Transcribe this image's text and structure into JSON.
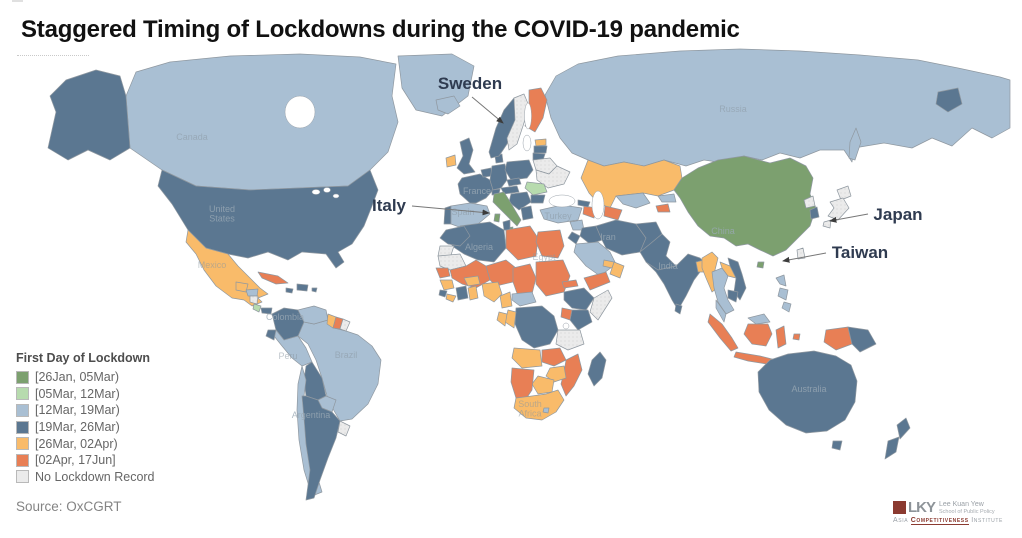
{
  "title": "Staggered Timing of Lockdowns during the COVID-19 pandemic",
  "source": "Source: OxCGRT",
  "legend": {
    "title": "First Day of Lockdown",
    "items": [
      {
        "key": "cat1",
        "label": "[26Jan, 05Mar)",
        "color": "#7ca06f"
      },
      {
        "key": "cat2",
        "label": "[05Mar, 12Mar)",
        "color": "#b7dbae"
      },
      {
        "key": "cat3",
        "label": "[12Mar, 19Mar)",
        "color": "#a9bfd3"
      },
      {
        "key": "cat4",
        "label": "[19Mar, 26Mar)",
        "color": "#5b7791"
      },
      {
        "key": "cat5",
        "label": "[26Mar, 02Apr)",
        "color": "#f9bb6a"
      },
      {
        "key": "cat6",
        "label": "[02Apr, 17Jun]",
        "color": "#e87f55"
      },
      {
        "key": "cat7",
        "label": "No Lockdown Record",
        "color": "#ebebeb"
      }
    ]
  },
  "annotations": [
    {
      "id": "sweden",
      "label": "Sweden"
    },
    {
      "id": "italy",
      "label": "Italy"
    },
    {
      "id": "japan",
      "label": "Japan"
    },
    {
      "id": "taiwan",
      "label": "Taiwan"
    }
  ],
  "map_labels": [
    {
      "id": "canada",
      "text": "Canada",
      "tone": "light"
    },
    {
      "id": "usa",
      "text": "United\nStates",
      "tone": "dark"
    },
    {
      "id": "mexico",
      "text": "Mexico",
      "tone": "light"
    },
    {
      "id": "colombia",
      "text": "Colombia",
      "tone": "dark"
    },
    {
      "id": "peru",
      "text": "Peru",
      "tone": "light"
    },
    {
      "id": "brazil",
      "text": "Brazil",
      "tone": "light"
    },
    {
      "id": "argentina",
      "text": "Argentina",
      "tone": "dark"
    },
    {
      "id": "russia",
      "text": "Russia",
      "tone": "light"
    },
    {
      "id": "china",
      "text": "China",
      "tone": "dark"
    },
    {
      "id": "india",
      "text": "India",
      "tone": "dark"
    },
    {
      "id": "iran",
      "text": "Iran",
      "tone": "dark"
    },
    {
      "id": "turkey",
      "text": "Turkey",
      "tone": "light"
    },
    {
      "id": "spain",
      "text": "Spain",
      "tone": "light"
    },
    {
      "id": "france",
      "text": "France",
      "tone": "dark"
    },
    {
      "id": "algeria",
      "text": "Algeria",
      "tone": "dark"
    },
    {
      "id": "egypt",
      "text": "Egypt",
      "tone": "light"
    },
    {
      "id": "southafrica",
      "text": "South\nAfrica",
      "tone": "light"
    },
    {
      "id": "australia",
      "text": "Australia",
      "tone": "dark"
    }
  ],
  "logo": {
    "letters": "LKY",
    "school_line1": "Lee Kuan Yew",
    "school_line2": "School of Public Policy",
    "institute_prefix": "Asia",
    "institute_highlight": "Competitiveness",
    "institute_suffix": "Institute",
    "maroon": "#8b3a30"
  },
  "chart_data": {
    "type": "choropleth",
    "title": "Staggered Timing of Lockdowns during the COVID-19 pandemic",
    "legend_title": "First Day of Lockdown",
    "source": "OxCGRT",
    "categories": [
      {
        "key": "cat1",
        "range": "[26Jan, 05Mar)",
        "color": "#7ca06f"
      },
      {
        "key": "cat2",
        "range": "[05Mar, 12Mar)",
        "color": "#b7dbae"
      },
      {
        "key": "cat3",
        "range": "[12Mar, 19Mar)",
        "color": "#a9bfd3"
      },
      {
        "key": "cat4",
        "range": "[19Mar, 26Mar)",
        "color": "#5b7791"
      },
      {
        "key": "cat5",
        "range": "[26Mar, 02Apr)",
        "color": "#f9bb6a"
      },
      {
        "key": "cat6",
        "range": "[02Apr, 17Jun]",
        "color": "#e87f55"
      },
      {
        "key": "cat7",
        "range": "No Lockdown Record",
        "color": "#ebebeb"
      }
    ],
    "regions": {
      "russia": "cat3",
      "chukotka": "cat4",
      "sakhalin": "cat3",
      "canada": "cat3",
      "alaska": "cat4",
      "greenland": "cat3",
      "usa": "cat4",
      "mexico": "cat5",
      "guatemala": "cat5",
      "honduras": "cat3",
      "nicaragua": "cat7",
      "costarica": "cat2",
      "panama": "cat4",
      "cuba": "cat6",
      "jamaica": "cat4",
      "hispaniola": "cat4",
      "puertorico": "cat4",
      "colombia": "cat4",
      "venezuela": "cat3",
      "guyana": "cat5",
      "suriname": "cat6",
      "frguiana": "cat7",
      "brazil": "cat3",
      "peru": "cat3",
      "ecuador": "cat4",
      "bolivia": "cat4",
      "paraguay": "cat3",
      "chile": "cat3",
      "argentina": "cat4",
      "uruguay": "cat7",
      "iceland": "cat3",
      "ireland": "cat5",
      "uk": "cat4",
      "portugal": "cat4",
      "spain": "cat3",
      "france": "cat4",
      "benelux": "cat4",
      "germany": "cat4",
      "denmark": "cat4",
      "norway": "cat4",
      "sweden": "cat7",
      "finland": "cat6",
      "estonia": "cat5",
      "latvia": "cat4",
      "lithuania": "cat4",
      "belarus": "cat7",
      "poland": "cat4",
      "czechia": "cat4",
      "austria": "cat4",
      "switzerland": "cat4",
      "ukraine": "cat7",
      "romania": "cat2",
      "balkans": "cat4",
      "bulgaria": "cat4",
      "greece": "cat4",
      "italy": "cat1",
      "sicily": "cat1",
      "sardinia": "cat1",
      "kazakhstan": "cat5",
      "uzbekistan": "cat3",
      "turkmenistan": "cat6",
      "kyrgyzstan": "cat3",
      "tajikistan": "cat6",
      "azerbaijan": "cat6",
      "georgia": "cat4",
      "turkey": "cat3",
      "syria": "cat3",
      "iraq": "cat4",
      "saudi": "cat3",
      "yemen": "cat6",
      "oman": "cat5",
      "uae": "cat5",
      "jordan": "cat4",
      "iran": "cat4",
      "afghanistan": "cat4",
      "pakistan": "cat4",
      "china": "cat1",
      "hainan": "cat1",
      "india": "cat4",
      "bangladesh": "cat5",
      "srilanka": "cat4",
      "myanmar": "cat5",
      "thailand": "cat3",
      "laos": "cat5",
      "vietnam": "cat4",
      "cambodia": "cat4",
      "malaysia": "cat3",
      "malaysia_borneo": "cat3",
      "philippines1": "cat3",
      "philippines2": "cat3",
      "philippines3": "cat3",
      "sumatra": "cat6",
      "java": "cat6",
      "kalimantan": "cat6",
      "sulawesi": "cat6",
      "moluccas": "cat6",
      "westpapua": "cat6",
      "png": "cat4",
      "timor": "cat6",
      "northkorea": "cat7",
      "southkorea": "cat4",
      "hokkaido": "cat7",
      "honshu": "cat7",
      "kyushu": "cat7",
      "taiwan": "cat7",
      "morocco": "cat4",
      "wsahara": "cat7",
      "mauritania": "cat7",
      "mali": "cat6",
      "niger": "cat6",
      "chad": "cat6",
      "sudan": "cat6",
      "algeria": "cat4",
      "tunisia": "cat4",
      "libya": "cat6",
      "egypt": "cat6",
      "senegal": "cat6",
      "guinea": "cat5",
      "sierraleone": "cat4",
      "liberia": "cat5",
      "ivorycoast": "cat4",
      "ghana": "cat5",
      "burkina": "cat5",
      "nigeria": "cat5",
      "cameroon": "cat5",
      "car": "cat3",
      "ethiopia": "cat4",
      "eritrea": "cat6",
      "somalia": "cat7",
      "kenya": "cat4",
      "uganda": "cat6",
      "drc": "cat4",
      "congo": "cat5",
      "gabon": "cat5",
      "tanzania": "cat7",
      "angola": "cat5",
      "zambia": "cat6",
      "mozambique": "cat6",
      "zimbabwe": "cat5",
      "botswana": "cat5",
      "namibia": "cat6",
      "southafrica": "cat5",
      "lesotho": "cat3",
      "madagascar": "cat4",
      "australia": "cat4",
      "tasmania": "cat4",
      "nz_north": "cat4",
      "nz_south": "cat4"
    }
  }
}
